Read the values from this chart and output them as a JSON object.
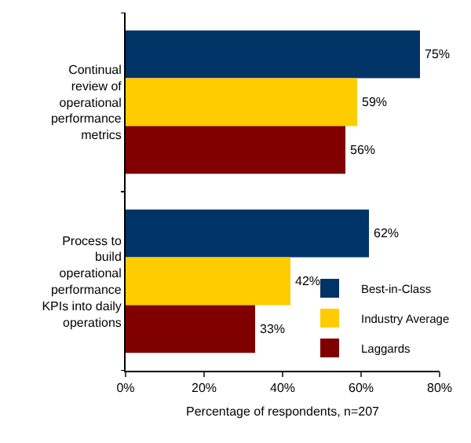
{
  "chart_data": {
    "type": "bar",
    "orientation": "horizontal",
    "xlabel": "Percentage of respondents, n=207",
    "categories": [
      "Continual review of operational performance metrics",
      "Process to build operational performance KPIs into daily operations"
    ],
    "series": [
      {
        "name": "Best-in-Class",
        "color": "#003366",
        "values": [
          75,
          62
        ],
        "value_labels": [
          "75%",
          "62%"
        ]
      },
      {
        "name": "Industry Average",
        "color": "#ffcc00",
        "values": [
          59,
          42
        ],
        "value_labels": [
          "59%",
          "42%"
        ]
      },
      {
        "name": "Laggards",
        "color": "#800000",
        "values": [
          56,
          33
        ],
        "value_labels": [
          "56%",
          "33%"
        ]
      }
    ],
    "xlim": [
      0,
      80
    ],
    "xticks": [
      {
        "value": 0,
        "label": "0%"
      },
      {
        "value": 20,
        "label": "20%"
      },
      {
        "value": 40,
        "label": "40%"
      },
      {
        "value": 60,
        "label": "60%"
      },
      {
        "value": 80,
        "label": "80%"
      }
    ],
    "grid": false,
    "legend": "bottom right"
  }
}
